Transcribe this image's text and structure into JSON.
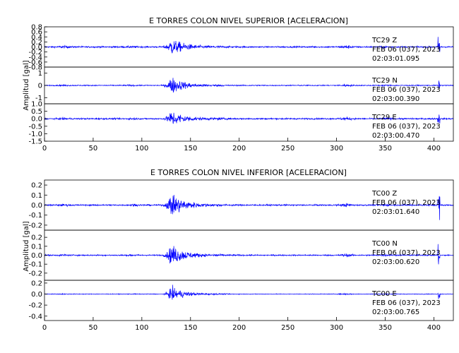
{
  "colors": {
    "trace": "#0000ff",
    "axis": "#000000",
    "background": "#ffffff"
  },
  "chart_data": [
    {
      "type": "line",
      "title": "E TORRES COLON NIVEL SUPERIOR [ACELERACION]",
      "ylabel": "Amplitud [gal]",
      "xlim": [
        0,
        420
      ],
      "xticks": [
        "0",
        "50",
        "100",
        "150",
        "200",
        "250",
        "300",
        "350",
        "400"
      ],
      "panels": [
        {
          "channel": "TC29",
          "component": "Z",
          "date": "FEB 06 (037), 2023",
          "time": "02:03:01.095",
          "ylim": [
            -0.8,
            0.8
          ],
          "yticks": [
            "0.8",
            "0.6",
            "0.4",
            "0.2",
            "0.0",
            "-0.2",
            "-0.4",
            "-0.6",
            "-0.8"
          ],
          "noise": 0.05,
          "event_peak": 0.55,
          "spike_time": 405,
          "spike_amp": 0.65
        },
        {
          "channel": "TC29",
          "component": "N",
          "date": "FEB 06 (037), 2023",
          "time": "02:03:00.390",
          "ylim": [
            -1.5,
            1.5
          ],
          "yticks": [
            "1",
            "0",
            "-1"
          ],
          "noise": 0.07,
          "event_peak": 1.2,
          "spike_time": 405,
          "spike_amp": 0.5
        },
        {
          "channel": "TC29",
          "component": "E",
          "date": "FEB 06 (037), 2023",
          "time": "02:03:00.470",
          "ylim": [
            -1.5,
            1.0
          ],
          "yticks": [
            "1.0",
            "0.5",
            "0.0",
            "-0.5",
            "-1.0",
            "-1.5"
          ],
          "noise": 0.08,
          "event_peak": 0.9,
          "spike_time": 405,
          "spike_amp": 0.6
        }
      ]
    },
    {
      "type": "line",
      "title": "E TORRES COLON NIVEL INFERIOR [ACELERACION]",
      "ylabel": "Amplitud [gal]",
      "xlim": [
        0,
        420
      ],
      "xticks": [
        "0",
        "50",
        "100",
        "150",
        "200",
        "250",
        "300",
        "350",
        "400"
      ],
      "panels": [
        {
          "channel": "TC00",
          "component": "Z",
          "date": "FEB 06 (037), 2023",
          "time": "02:03:01.640",
          "ylim": [
            -0.25,
            0.25
          ],
          "yticks": [
            "0.2",
            "0.1",
            "0.0",
            "-0.1",
            "-0.2"
          ],
          "noise": 0.012,
          "event_peak": 0.2,
          "spike_time": 405,
          "spike_amp": 0.22
        },
        {
          "channel": "TC00",
          "component": "N",
          "date": "FEB 06 (037), 2023",
          "time": "02:03:00.620",
          "ylim": [
            -0.28,
            0.28
          ],
          "yticks": [
            "0.2",
            "0.1",
            "0.0",
            "-0.1",
            "-0.2"
          ],
          "noise": 0.012,
          "event_peak": 0.2,
          "spike_time": 405,
          "spike_amp": 0.18
        },
        {
          "channel": "TC00",
          "component": "E",
          "date": "FEB 06 (037), 2023",
          "time": "02:03:00.765",
          "ylim": [
            -0.48,
            0.25
          ],
          "yticks": [
            "0.2",
            "0.0",
            "-0.2",
            "-0.4"
          ],
          "noise": 0.01,
          "event_peak": 0.22,
          "spike_time": 405,
          "spike_amp": 0.15
        }
      ]
    }
  ]
}
